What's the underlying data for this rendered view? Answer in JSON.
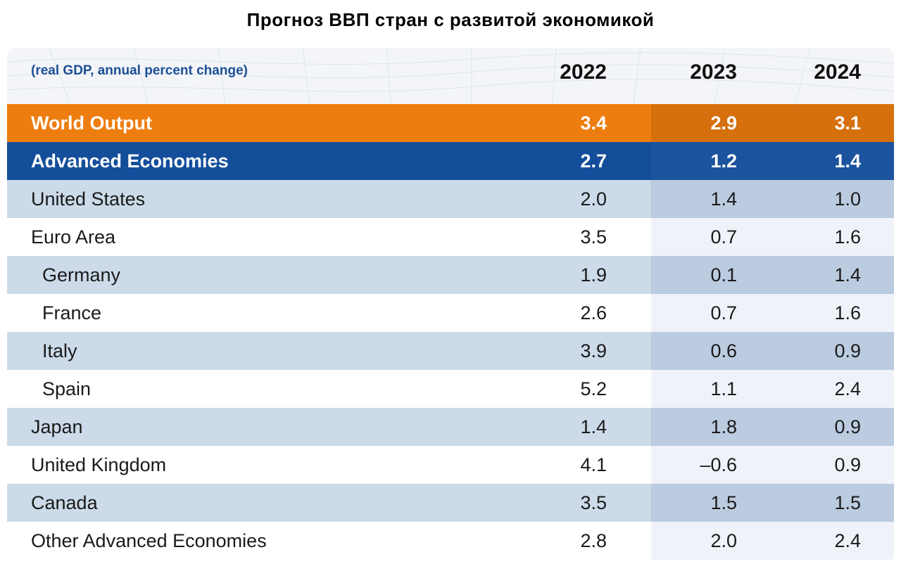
{
  "title": "Прогноз ВВП стран с развитой экономикой",
  "chart_data": {
    "type": "table",
    "title": "Прогноз ВВП стран с развитой экономикой",
    "subtitle": "(real GDP, annual percent change)",
    "columns": [
      "2022",
      "2023",
      "2024"
    ],
    "rows": [
      {
        "label": "World Output",
        "values": [
          "3.4",
          "2.9",
          "3.1"
        ]
      },
      {
        "label": "Advanced Economies",
        "values": [
          "2.7",
          "1.2",
          "1.4"
        ]
      },
      {
        "label": "United States",
        "values": [
          "2.0",
          "1.4",
          "1.0"
        ]
      },
      {
        "label": "Euro Area",
        "values": [
          "3.5",
          "0.7",
          "1.6"
        ]
      },
      {
        "label": "Germany",
        "values": [
          "1.9",
          "0.1",
          "1.4"
        ]
      },
      {
        "label": "France",
        "values": [
          "2.6",
          "0.7",
          "1.6"
        ]
      },
      {
        "label": "Italy",
        "values": [
          "3.9",
          "0.6",
          "0.9"
        ]
      },
      {
        "label": "Spain",
        "values": [
          "5.2",
          "1.1",
          "2.4"
        ]
      },
      {
        "label": "Japan",
        "values": [
          "1.4",
          "1.8",
          "0.9"
        ]
      },
      {
        "label": "United Kingdom",
        "values": [
          "4.1",
          "–0.6",
          "0.9"
        ]
      },
      {
        "label": "Canada",
        "values": [
          "3.5",
          "1.5",
          "1.5"
        ]
      },
      {
        "label": "Other Advanced Economies",
        "values": [
          "2.8",
          "2.0",
          "2.4"
        ]
      }
    ]
  },
  "colors": {
    "world_output_row": "#ee7d0f",
    "advanced_economies_row": "#144e9b",
    "banded_row": "#ccdae9",
    "subtitle_text": "#1d4f96"
  }
}
